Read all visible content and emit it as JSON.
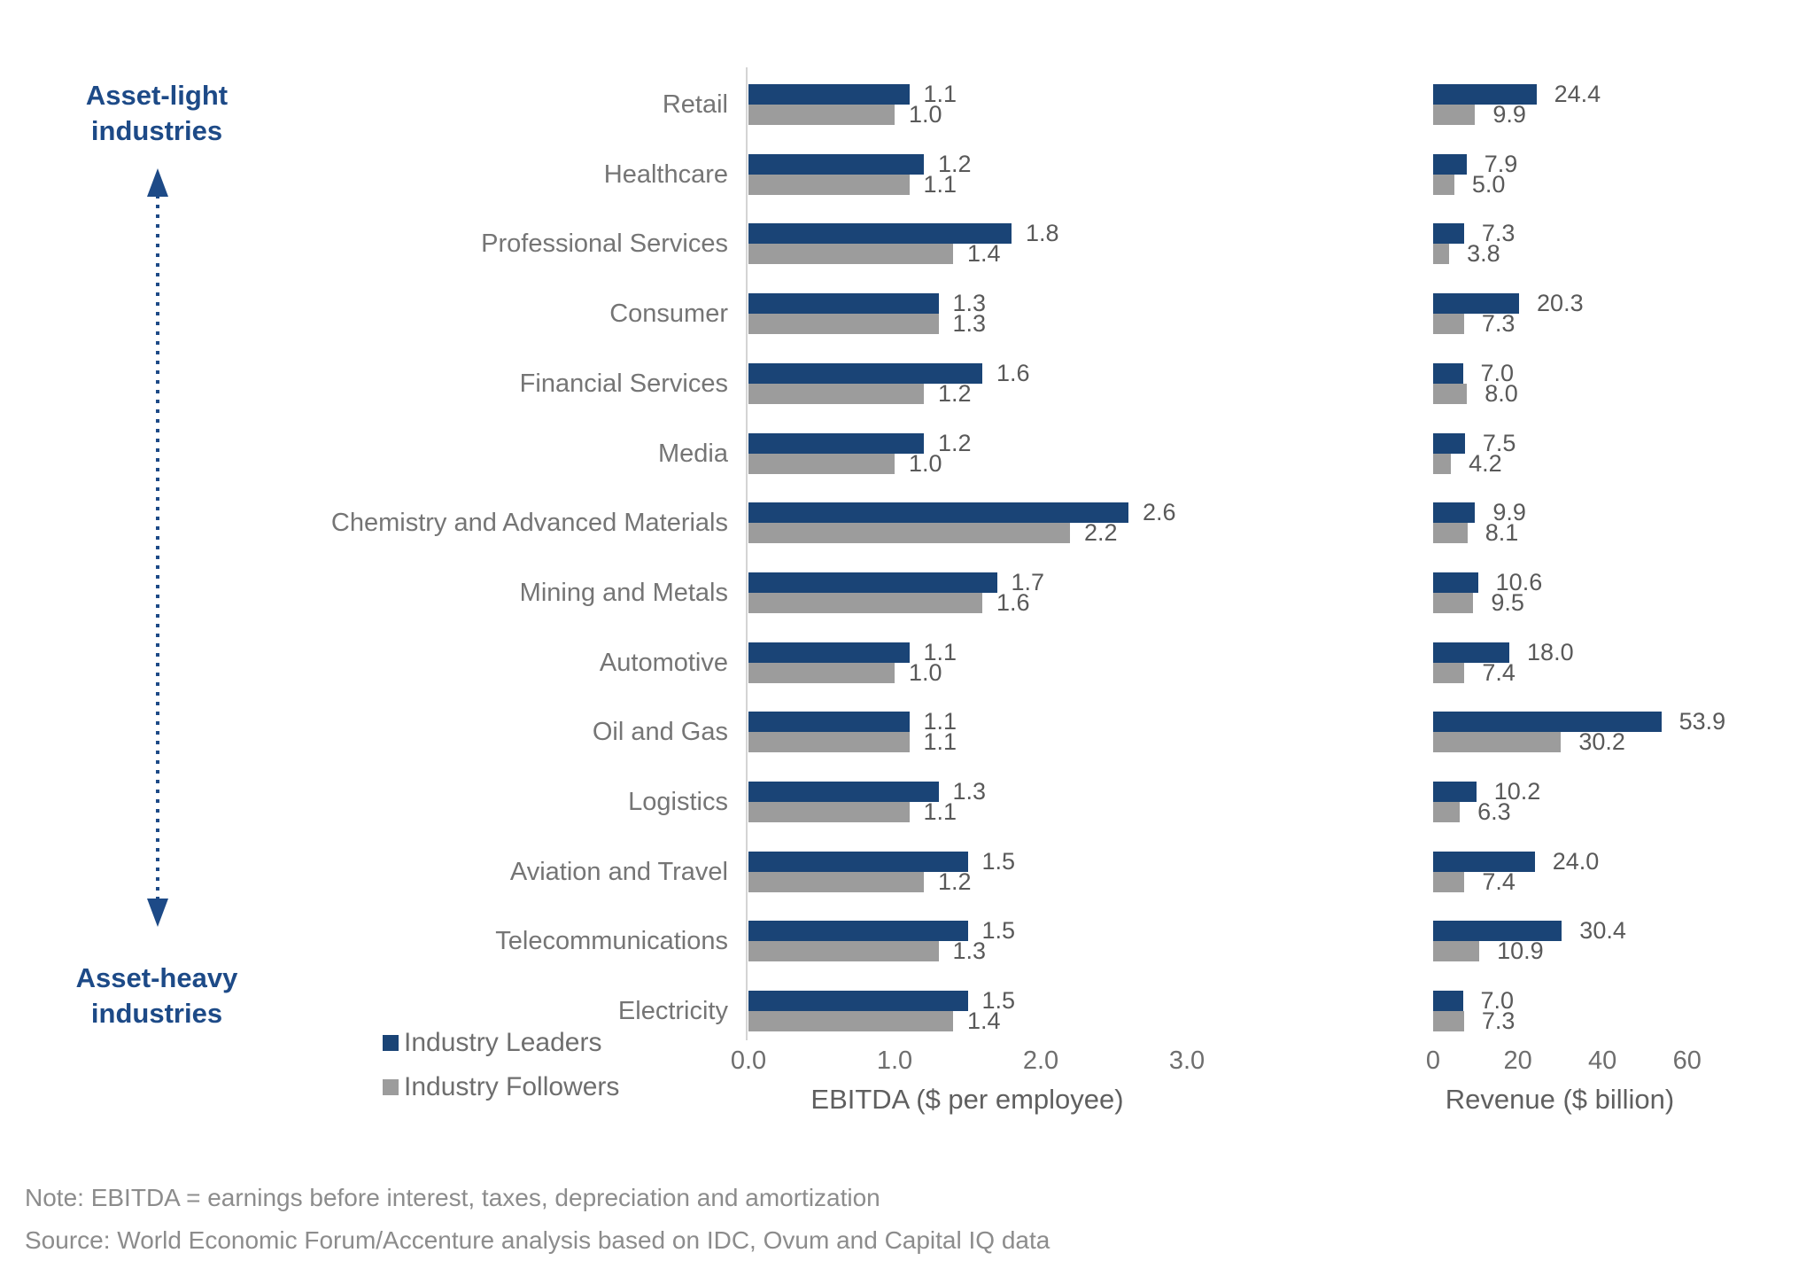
{
  "colors": {
    "accent_blue": "#1d4a87",
    "leader_bar": "#1a4476",
    "follower_bar": "#9c9c9c"
  },
  "annotations": {
    "asset_light_line1": "Asset-light",
    "asset_light_line2": "industries",
    "asset_heavy_line1": "Asset-heavy",
    "asset_heavy_line2": "industries"
  },
  "legend": {
    "items": [
      {
        "label": "Industry Leaders",
        "color": "#1a4476"
      },
      {
        "label": "Industry Followers",
        "color": "#9c9c9c"
      }
    ]
  },
  "chart_data": {
    "type": "bar",
    "orientation": "horizontal",
    "categories": [
      "Retail",
      "Healthcare",
      "Professional Services",
      "Consumer",
      "Financial Services",
      "Media",
      "Chemistry and Advanced Materials",
      "Mining and Metals",
      "Automotive",
      "Oil and Gas",
      "Logistics",
      "Aviation and Travel",
      "Telecommunications",
      "Electricity"
    ],
    "series": [
      {
        "name": "Industry Leaders",
        "color": "#1a4476",
        "ebitda": [
          1.1,
          1.2,
          1.8,
          1.3,
          1.6,
          1.2,
          2.6,
          1.7,
          1.1,
          1.1,
          1.3,
          1.5,
          1.5,
          1.5
        ],
        "revenue": [
          24.4,
          7.9,
          7.3,
          20.3,
          7.0,
          7.5,
          9.9,
          10.6,
          18.0,
          53.9,
          10.2,
          24.0,
          30.4,
          7.0
        ]
      },
      {
        "name": "Industry Followers",
        "color": "#9c9c9c",
        "ebitda": [
          1.0,
          1.1,
          1.4,
          1.3,
          1.2,
          1.0,
          2.2,
          1.6,
          1.0,
          1.1,
          1.1,
          1.2,
          1.3,
          1.4
        ],
        "revenue": [
          9.9,
          5.0,
          3.8,
          7.3,
          8.0,
          4.2,
          8.1,
          9.5,
          7.4,
          30.2,
          6.3,
          7.4,
          10.9,
          7.3
        ]
      }
    ],
    "panels": [
      {
        "id": "ebitda",
        "xlabel": "EBITDA ($ per employee)",
        "ticks": [
          "0.0",
          "1.0",
          "2.0",
          "3.0"
        ],
        "xlim": [
          0,
          3.2
        ],
        "grid": false,
        "value_labels": true
      },
      {
        "id": "revenue",
        "xlabel": "Revenue ($ billion)",
        "ticks": [
          "0",
          "20",
          "40",
          "60"
        ],
        "xlim": [
          0,
          64
        ],
        "grid": false,
        "value_labels": true
      }
    ],
    "value_label_decimals": 1,
    "legend_position": "bottom-left"
  },
  "footer": {
    "note": "Note: EBITDA = earnings before interest, taxes, depreciation and amortization",
    "source": "Source: World Economic Forum/Accenture analysis based on IDC, Ovum and Capital IQ data"
  }
}
